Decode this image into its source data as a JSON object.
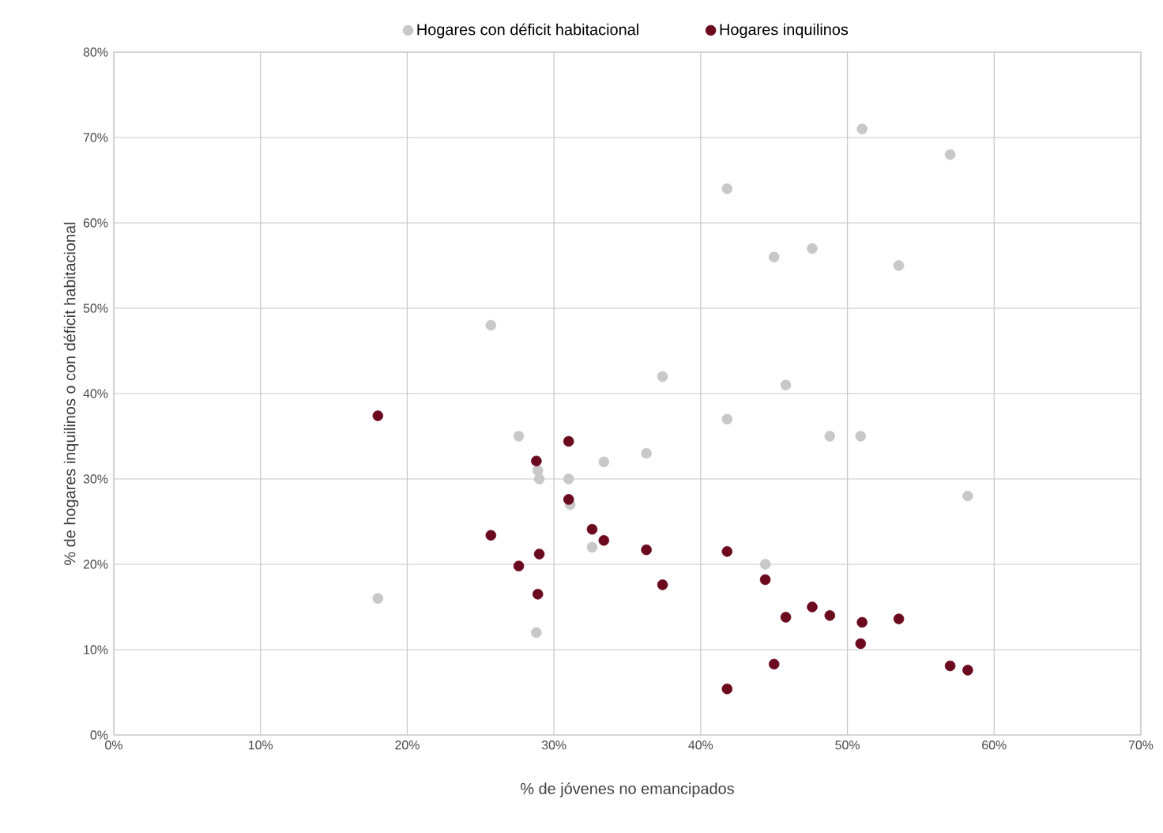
{
  "chart_data": {
    "type": "scatter",
    "xlabel": "% de jóvenes no emancipados",
    "ylabel": "% de hogares inquilinos o con déficit habitacional",
    "series": [
      {
        "name": "Hogares con déficit habitacional",
        "color": "#c8c8c8",
        "x": [
          51.0,
          57.0,
          41.8,
          45.0,
          47.6,
          53.5,
          25.7,
          37.4,
          45.8,
          41.8,
          27.6,
          48.8,
          50.9,
          33.4,
          36.3,
          28.9,
          29.0,
          31.0,
          31.1,
          32.6,
          18.0,
          28.8,
          58.2,
          44.4
        ],
        "values": [
          71,
          68,
          64,
          56,
          57,
          55,
          48,
          42,
          41,
          37,
          35,
          35,
          35,
          32,
          33,
          31,
          30,
          30,
          27,
          22,
          16,
          12,
          28,
          20
        ]
      },
      {
        "name": "Hogares inquilinos",
        "color": "#6b0a1e",
        "x": [
          18.0,
          31.0,
          28.8,
          31.0,
          32.6,
          33.4,
          25.7,
          36.3,
          29.0,
          27.6,
          37.4,
          28.9,
          41.8,
          44.4,
          45.8,
          47.6,
          48.8,
          51.0,
          53.5,
          50.9,
          45.0,
          41.8,
          57.0,
          58.2
        ],
        "values": [
          37.4,
          34.4,
          32.1,
          27.6,
          24.1,
          22.8,
          23.4,
          21.7,
          21.2,
          19.8,
          17.6,
          16.5,
          21.5,
          18.2,
          13.8,
          15.0,
          14.0,
          13.2,
          13.6,
          10.7,
          8.3,
          5.4,
          8.1,
          7.6
        ]
      }
    ],
    "xlim": [
      0,
      70
    ],
    "xticks": [
      {
        "value": 0,
        "label": "0%"
      },
      {
        "value": 10,
        "label": "10%"
      },
      {
        "value": 20,
        "label": "20%"
      },
      {
        "value": 30,
        "label": "30%"
      },
      {
        "value": 40,
        "label": "40%"
      },
      {
        "value": 50,
        "label": "50%"
      },
      {
        "value": 60,
        "label": "60%"
      },
      {
        "value": 70,
        "label": "70%"
      }
    ],
    "ylim": [
      0,
      80
    ],
    "yticks": [
      {
        "value": 0,
        "label": "0%"
      },
      {
        "value": 10,
        "label": "10%"
      },
      {
        "value": 20,
        "label": "20%"
      },
      {
        "value": 30,
        "label": "30%"
      },
      {
        "value": 40,
        "label": "40%"
      },
      {
        "value": 50,
        "label": "50%"
      },
      {
        "value": 60,
        "label": "60%"
      },
      {
        "value": 70,
        "label": "70%"
      },
      {
        "value": 80,
        "label": "80%"
      }
    ],
    "grid": true,
    "legend": "top",
    "marker": "circle"
  }
}
